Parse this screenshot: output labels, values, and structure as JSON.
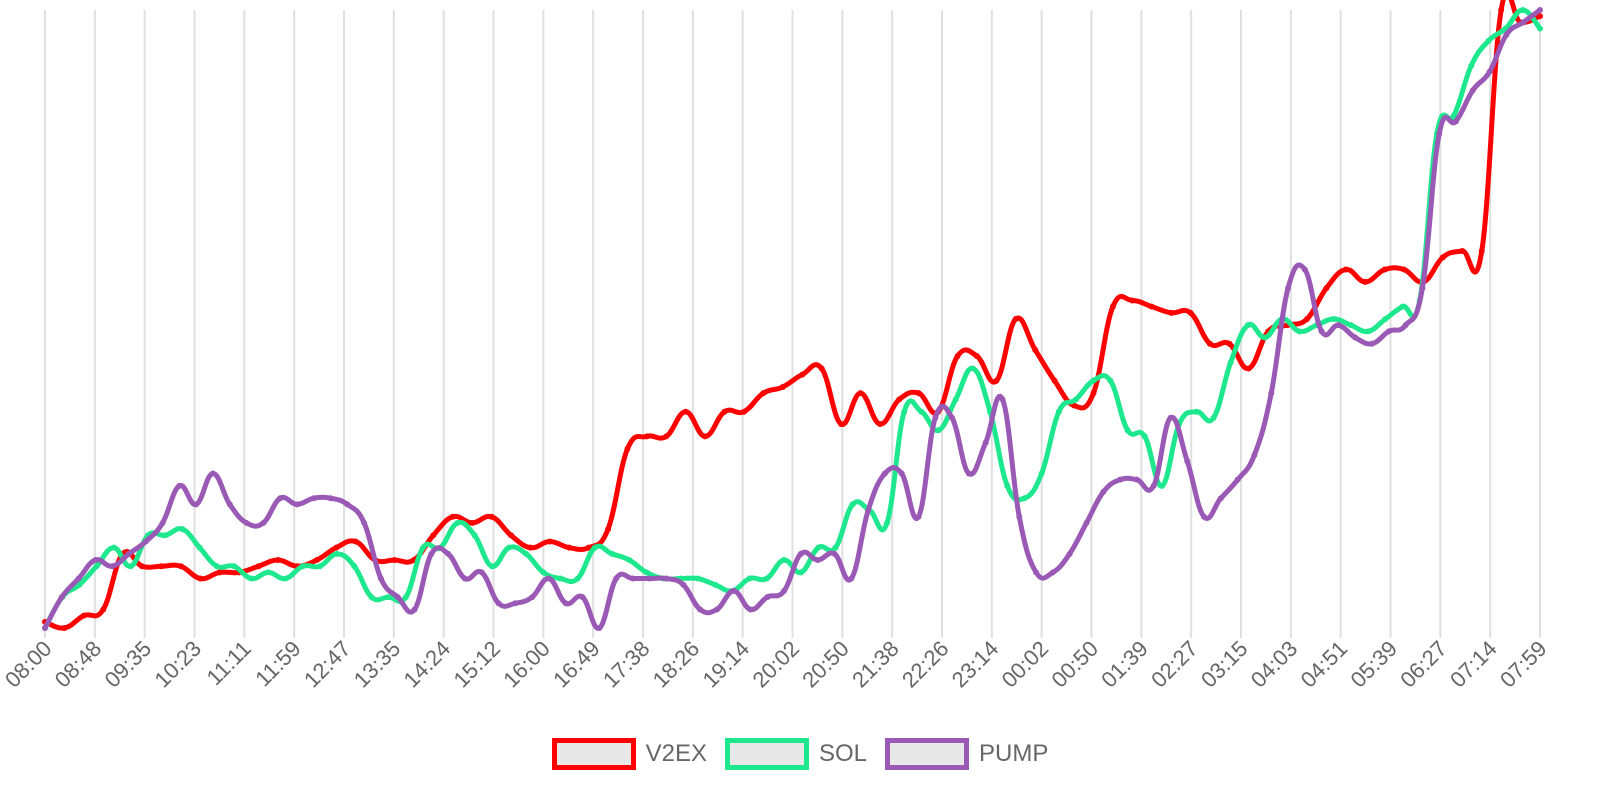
{
  "chart_data": {
    "type": "line",
    "title": "",
    "xlabel": "",
    "ylabel": "",
    "grid": "vertical",
    "legend_position": "bottom",
    "y_axis_labels_visible": false,
    "ylim": [
      0,
      100
    ],
    "tick_labels": [
      "08:00",
      "08:48",
      "09:35",
      "10:23",
      "11:11",
      "11:59",
      "12:47",
      "13:35",
      "14:24",
      "15:12",
      "16:00",
      "16:49",
      "17:38",
      "18:26",
      "19:14",
      "20:02",
      "20:50",
      "21:38",
      "22:26",
      "23:14",
      "00:02",
      "00:50",
      "01:39",
      "02:27",
      "03:15",
      "04:03",
      "04:51",
      "05:39",
      "06:27",
      "07:14",
      "07:59"
    ],
    "x_points_per_tick": 3,
    "series": [
      {
        "name": "V2EX",
        "color": "#ff0000",
        "values": [
          1,
          0,
          2,
          3,
          12,
          10,
          10,
          10,
          8,
          9,
          9,
          10,
          11,
          10,
          11,
          13,
          14,
          11,
          11,
          11,
          15,
          18,
          17,
          18,
          15,
          13,
          14,
          13,
          13,
          16,
          29,
          31,
          31,
          35,
          31,
          35,
          35,
          38,
          39,
          41,
          42,
          33,
          38,
          33,
          37,
          38,
          35,
          44,
          44,
          40,
          50,
          45,
          40,
          36,
          38,
          52,
          53,
          52,
          51,
          51,
          46,
          46,
          42,
          48,
          49,
          50,
          55,
          58,
          56,
          58,
          58,
          56,
          60,
          61,
          61,
          100,
          98,
          99
        ]
      },
      {
        "name": "SOL",
        "color": "#1ee88e",
        "values": [
          0,
          5,
          7,
          10,
          13,
          10,
          15,
          15,
          16,
          13,
          10,
          10,
          8,
          9,
          8,
          10,
          10,
          12,
          10,
          5,
          5,
          5,
          13,
          13,
          17,
          15,
          10,
          13,
          12,
          9,
          8,
          8,
          13,
          12,
          11,
          9,
          8,
          8,
          8,
          7,
          6,
          8,
          8,
          11,
          9,
          13,
          13,
          20,
          19,
          17,
          35,
          35,
          32,
          37,
          42,
          35,
          23,
          21,
          25,
          35,
          37,
          40,
          40,
          32,
          31,
          23,
          33,
          35,
          34,
          43,
          49,
          47,
          50,
          48,
          49,
          50,
          49,
          48,
          50,
          52,
          53,
          80,
          83,
          91,
          95,
          97,
          100,
          97
        ]
      },
      {
        "name": "PUMP",
        "color": "#9b59b6",
        "values": [
          0,
          5,
          8,
          11,
          10,
          12,
          14,
          17,
          23,
          20,
          25,
          20,
          17,
          17,
          21,
          20,
          21,
          21,
          20,
          17,
          8,
          5,
          3,
          12,
          12,
          8,
          9,
          4,
          4,
          5,
          8,
          4,
          5,
          0,
          8,
          8,
          8,
          8,
          7,
          3,
          3,
          6,
          3,
          5,
          6,
          12,
          11,
          12,
          8,
          19,
          25,
          25,
          18,
          34,
          34,
          25,
          30,
          37,
          18,
          9,
          9,
          12,
          17,
          22,
          24,
          24,
          23,
          34,
          27,
          18,
          21,
          24,
          28,
          38,
          55,
          58,
          48,
          49,
          47,
          46,
          48,
          49,
          55,
          80,
          82,
          87,
          90,
          96,
          98,
          100
        ]
      }
    ]
  },
  "legend": {
    "items": [
      {
        "label": "V2EX",
        "color": "#ff0000"
      },
      {
        "label": "SOL",
        "color": "#1ee88e"
      },
      {
        "label": "PUMP",
        "color": "#9b59b6"
      }
    ]
  }
}
